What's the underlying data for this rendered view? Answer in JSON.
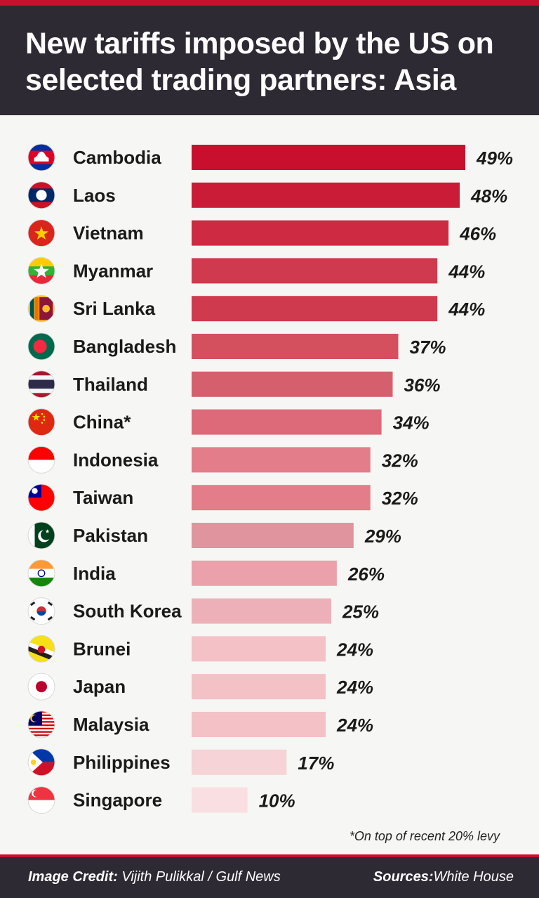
{
  "title": "New tariffs imposed by the US on selected trading partners: Asia",
  "footnote": "*On top of recent 20% levy",
  "footer": {
    "credit_label": "Image Credit:",
    "credit_value": "Vijith Pulikkal / Gulf News",
    "sources_label": "Sources:",
    "sources_value": "White House"
  },
  "colors": {
    "accent": "#c8102e",
    "header_bg": "#2d2a33",
    "background": "#f6f6f4"
  },
  "chart_data": {
    "type": "bar",
    "orientation": "horizontal",
    "categories": [
      "Cambodia",
      "Laos",
      "Vietnam",
      "Myanmar",
      "Sri Lanka",
      "Bangladesh",
      "Thailand",
      "China*",
      "Indonesia",
      "Taiwan",
      "Pakistan",
      "India",
      "South Korea",
      "Brunei",
      "Japan",
      "Malaysia",
      "Philippines",
      "Singapore"
    ],
    "values": [
      49,
      48,
      46,
      44,
      44,
      37,
      36,
      34,
      32,
      32,
      29,
      26,
      25,
      24,
      24,
      24,
      17,
      10
    ],
    "value_labels": [
      "49%",
      "48%",
      "46%",
      "44%",
      "44%",
      "37%",
      "36%",
      "34%",
      "32%",
      "32%",
      "29%",
      "26%",
      "25%",
      "24%",
      "24%",
      "24%",
      "17%",
      "10%"
    ],
    "bar_colors": [
      "#c8102e",
      "#cb1c37",
      "#ce2a42",
      "#d03a4e",
      "#d03a4e",
      "#d4505f",
      "#d55f6d",
      "#dc6a78",
      "#e27d89",
      "#e27d89",
      "#df949e",
      "#eba1ab",
      "#eeb0b8",
      "#f3c1c6",
      "#f3c1c6",
      "#f3c1c6",
      "#f6d3d6",
      "#fadfe2"
    ],
    "flag_icons": [
      "cambodia-flag-icon",
      "laos-flag-icon",
      "vietnam-flag-icon",
      "myanmar-flag-icon",
      "sri-lanka-flag-icon",
      "bangladesh-flag-icon",
      "thailand-flag-icon",
      "china-flag-icon",
      "indonesia-flag-icon",
      "taiwan-flag-icon",
      "pakistan-flag-icon",
      "india-flag-icon",
      "south-korea-flag-icon",
      "brunei-flag-icon",
      "japan-flag-icon",
      "malaysia-flag-icon",
      "philippines-flag-icon",
      "singapore-flag-icon"
    ],
    "unit": "%",
    "grid": false,
    "legend": "none"
  }
}
